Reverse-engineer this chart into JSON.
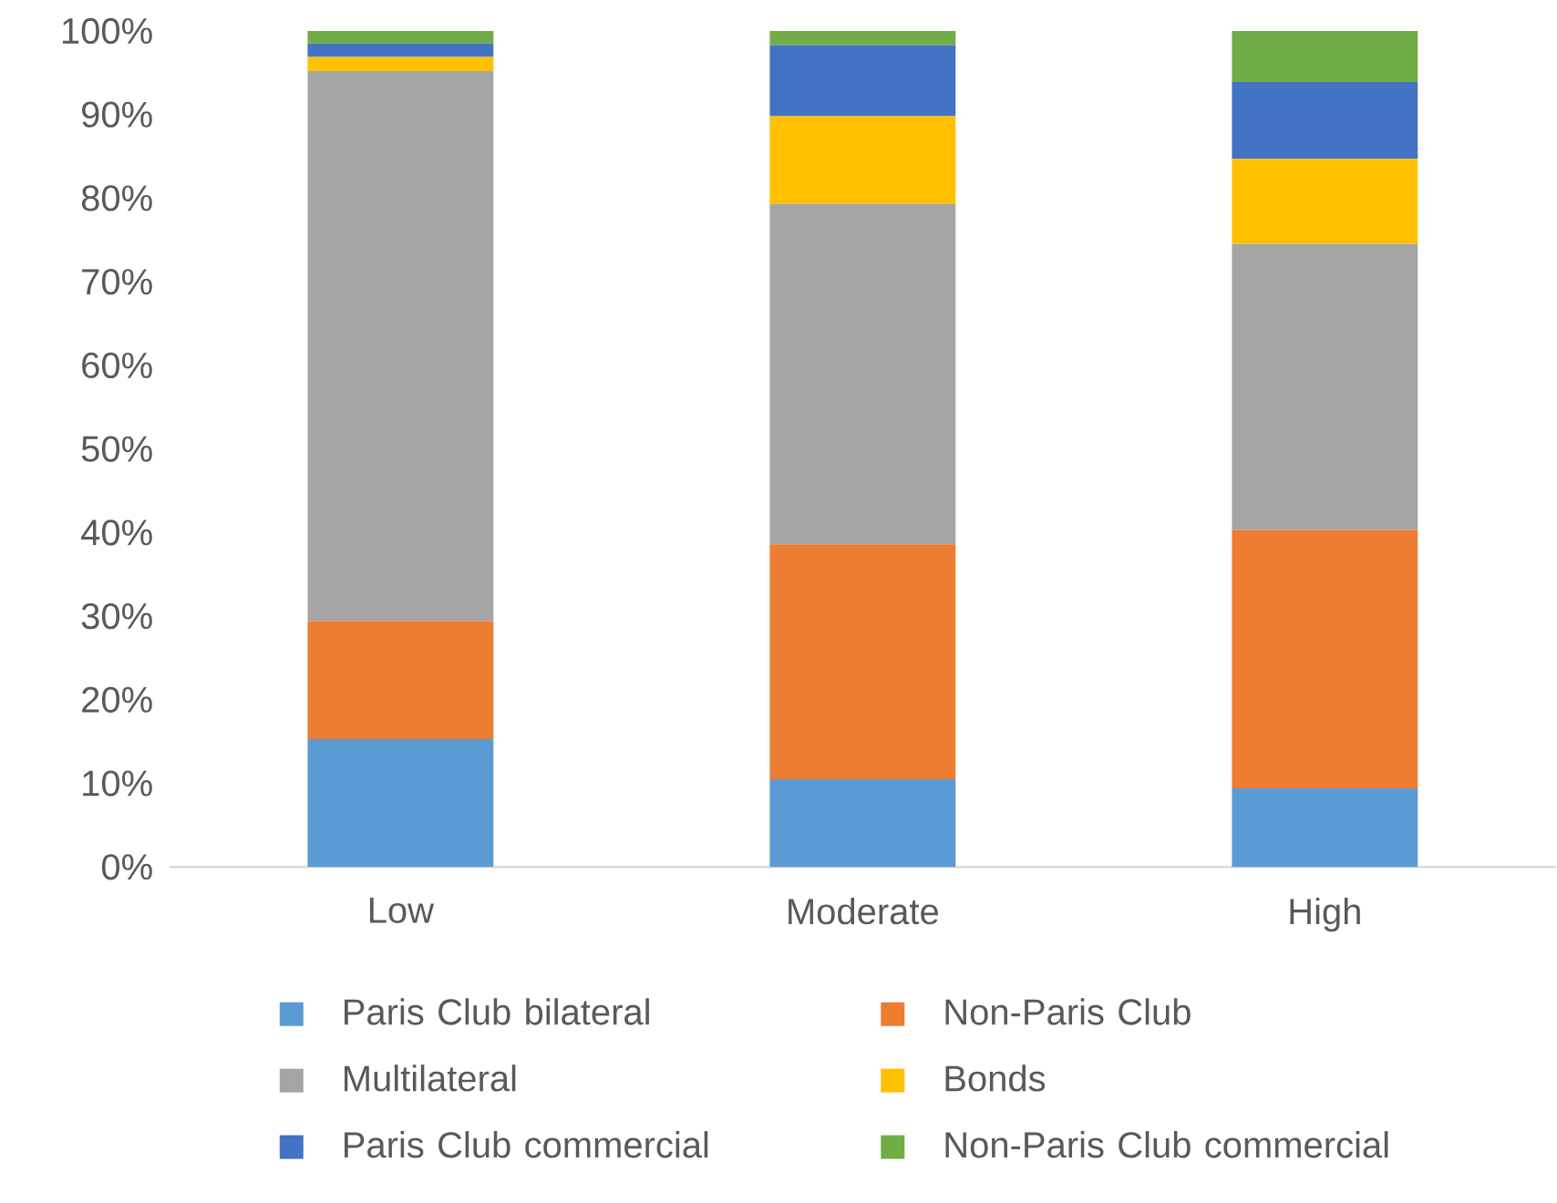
{
  "chart_data": {
    "type": "bar",
    "stacked": true,
    "categories": [
      "Low",
      "Moderate",
      "High"
    ],
    "series": [
      {
        "name": "Paris Club bilateral",
        "color": "#5b9bd5",
        "values": [
          15.3,
          10.5,
          9.4
        ]
      },
      {
        "name": "Non-Paris Club",
        "color": "#ed7d31",
        "values": [
          14.1,
          28.1,
          30.9
        ]
      },
      {
        "name": "Multilateral",
        "color": "#a5a5a5",
        "values": [
          65.8,
          40.7,
          34.2
        ]
      },
      {
        "name": "Bonds",
        "color": "#ffc000",
        "values": [
          1.7,
          10.5,
          10.2
        ]
      },
      {
        "name": "Paris Club commercial",
        "color": "#4472c4",
        "values": [
          1.6,
          8.5,
          9.2
        ]
      },
      {
        "name": "Non-Paris Club commercial",
        "color": "#70ad47",
        "values": [
          1.5,
          1.7,
          6.1
        ]
      }
    ],
    "ylim": [
      0,
      100
    ],
    "yticks": [
      {
        "value": 0,
        "label": "0%"
      },
      {
        "value": 10,
        "label": "10%"
      },
      {
        "value": 20,
        "label": "20%"
      },
      {
        "value": 30,
        "label": "30%"
      },
      {
        "value": 40,
        "label": "40%"
      },
      {
        "value": 50,
        "label": "50%"
      },
      {
        "value": 60,
        "label": "60%"
      },
      {
        "value": 70,
        "label": "70%"
      },
      {
        "value": 80,
        "label": "80%"
      },
      {
        "value": 90,
        "label": "90%"
      },
      {
        "value": 100,
        "label": "100%"
      }
    ],
    "legend": "bottom"
  }
}
